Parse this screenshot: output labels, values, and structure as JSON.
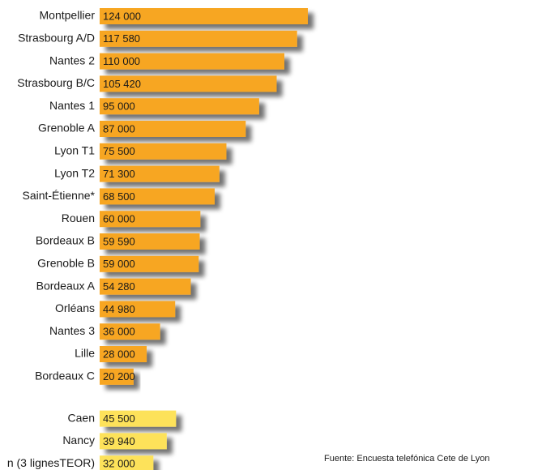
{
  "chart_data": {
    "type": "bar",
    "orientation": "horizontal",
    "categories": [
      "Montpellier",
      "Strasbourg A/D",
      "Nantes 2",
      "Strasbourg B/C",
      "Nantes 1",
      "Grenoble A",
      "Lyon T1",
      "Lyon T2",
      "Saint-Étienne*",
      "Rouen",
      "Bordeaux B",
      "Grenoble B",
      "Bordeaux A",
      "Orléans",
      "Nantes 3",
      "Lille",
      "Bordeaux C",
      "Caen",
      "Nancy",
      "n (3 lignesTEOR)"
    ],
    "values": [
      124000,
      117580,
      110000,
      105420,
      95000,
      87000,
      75500,
      71300,
      68500,
      60000,
      59590,
      59000,
      54280,
      44980,
      36000,
      28000,
      20200,
      45500,
      39940,
      32000
    ],
    "value_labels": [
      "124 000",
      "117 580",
      "110 000",
      "105 420",
      "95 000",
      "87 000",
      "75 500",
      "71 300",
      "68 500",
      "60 000",
      "59 590",
      "59 000",
      "54 280",
      "44 980",
      "36 000",
      "28 000",
      "20 200",
      "45 500",
      "39 940",
      "32 000"
    ],
    "colors": [
      "#f7a623",
      "#f7a623",
      "#f7a623",
      "#f7a623",
      "#f7a623",
      "#f7a623",
      "#f7a623",
      "#f7a623",
      "#f7a623",
      "#f7a623",
      "#f7a623",
      "#f7a623",
      "#f7a623",
      "#f7a623",
      "#f7a623",
      "#f7a623",
      "#f7a623",
      "#fde25a",
      "#fde25a",
      "#fde25a"
    ],
    "source": "Fuente: Encuesta telefónica Cete de Lyon"
  }
}
